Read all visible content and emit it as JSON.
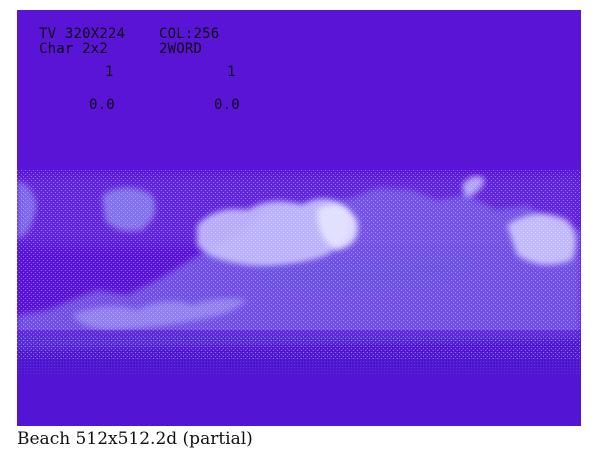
{
  "osd": {
    "tv_mode": "TV 320X224",
    "color_mode": "COL:256",
    "char_mode": "Char 2x2",
    "word_mode": "2WORD",
    "left_counter": "1",
    "right_counter": "1",
    "left_value": "0.0",
    "right_value": "0.0"
  },
  "caption": "Beach 512x512.2d (partial)",
  "colors": {
    "screen_background": "#5a14d6",
    "osd_text": "#0a0a14",
    "wave_light": "#c8c4ff",
    "wave_mid": "#8a84f0",
    "wave_dark": "#4a2cc0"
  },
  "scene": {
    "description_icon": "dithered-wave-image"
  }
}
